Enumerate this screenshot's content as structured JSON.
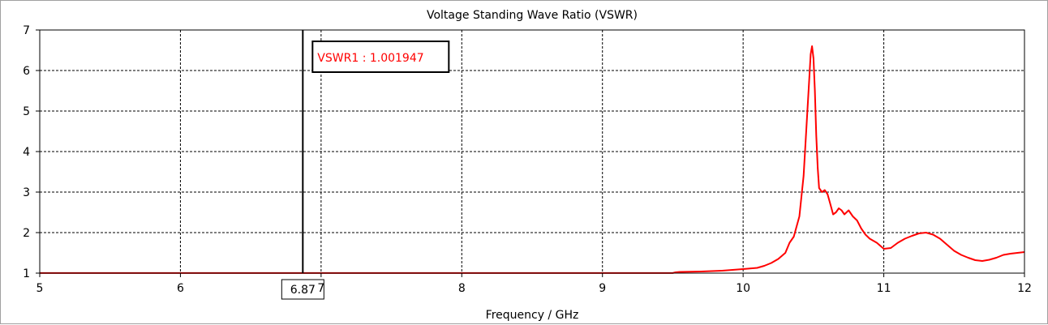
{
  "chart_data": {
    "type": "line",
    "title": "Voltage Standing Wave Ratio (VSWR)",
    "xlabel": "Frequency / GHz",
    "ylabel": "",
    "xlim": [
      5,
      12
    ],
    "ylim": [
      1,
      7
    ],
    "x_ticks": [
      "5",
      "6",
      "7",
      "8",
      "9",
      "10",
      "11",
      "12"
    ],
    "y_ticks": [
      "1",
      "2",
      "3",
      "4",
      "5",
      "6",
      "7"
    ],
    "grid": true,
    "series": [
      {
        "color": "#ff0000",
        "x": [
          5.0,
          6.0,
          7.0,
          8.0,
          9.0,
          9.5,
          9.52,
          9.55,
          9.7,
          9.85,
          10.0,
          10.1,
          10.15,
          10.2,
          10.25,
          10.3,
          10.33,
          10.36,
          10.4,
          10.43,
          10.45,
          10.47,
          10.48,
          10.49,
          10.5,
          10.51,
          10.52,
          10.53,
          10.54,
          10.56,
          10.58,
          10.6,
          10.62,
          10.64,
          10.66,
          10.68,
          10.7,
          10.72,
          10.75,
          10.78,
          10.81,
          10.84,
          10.87,
          10.9,
          10.95,
          11.0,
          11.05,
          11.1,
          11.15,
          11.2,
          11.25,
          11.3,
          11.35,
          11.4,
          11.45,
          11.5,
          11.55,
          11.6,
          11.65,
          11.7,
          11.75,
          11.8,
          11.85,
          11.9,
          11.95,
          12.0
        ],
        "values": [
          1.002,
          1.002,
          1.002,
          1.002,
          1.002,
          1.002,
          1.02,
          1.03,
          1.04,
          1.06,
          1.1,
          1.13,
          1.18,
          1.25,
          1.35,
          1.5,
          1.75,
          1.9,
          2.4,
          3.4,
          4.6,
          5.8,
          6.4,
          6.6,
          6.3,
          5.5,
          4.4,
          3.6,
          3.1,
          3.0,
          3.05,
          2.95,
          2.7,
          2.45,
          2.5,
          2.6,
          2.55,
          2.45,
          2.55,
          2.4,
          2.3,
          2.1,
          1.95,
          1.85,
          1.75,
          1.6,
          1.62,
          1.75,
          1.85,
          1.92,
          1.98,
          2.0,
          1.95,
          1.85,
          1.7,
          1.55,
          1.45,
          1.38,
          1.32,
          1.3,
          1.33,
          1.38,
          1.45,
          1.48,
          1.5,
          1.52
        ]
      }
    ],
    "markers": [
      {
        "x": 6.87,
        "x_label": "6.87",
        "label": "VSWR1 : 1.001947"
      }
    ]
  }
}
